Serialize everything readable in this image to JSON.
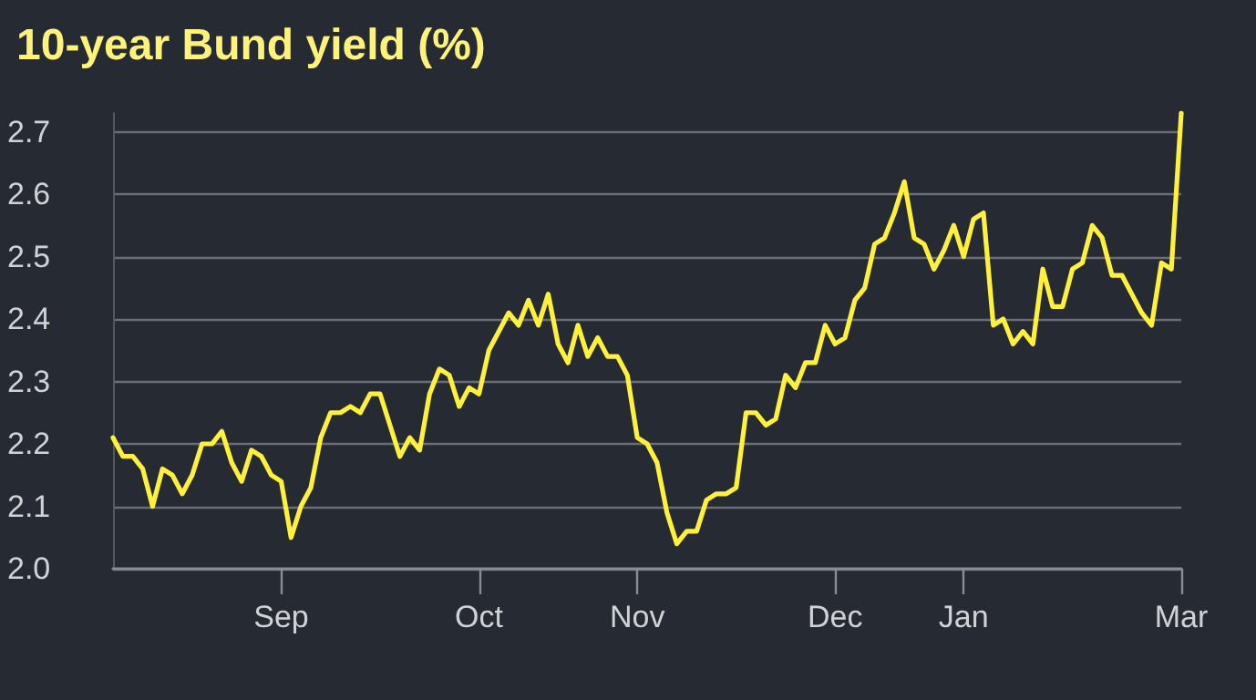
{
  "chart_data": {
    "type": "line",
    "title": "10-year Bund yield (%)",
    "categories": [
      null,
      null,
      null,
      null,
      null,
      null,
      null,
      null,
      null,
      null,
      null,
      null,
      null,
      null,
      null,
      null,
      null,
      "Sep",
      null,
      null,
      null,
      null,
      null,
      null,
      null,
      null,
      null,
      null,
      null,
      null,
      null,
      null,
      null,
      null,
      null,
      null,
      null,
      "Oct",
      null,
      null,
      null,
      null,
      null,
      null,
      null,
      null,
      null,
      null,
      null,
      null,
      null,
      null,
      null,
      "Nov",
      null,
      null,
      null,
      null,
      null,
      null,
      null,
      null,
      null,
      null,
      null,
      null,
      null,
      null,
      null,
      null,
      null,
      null,
      null,
      "Dec",
      null,
      null,
      null,
      null,
      null,
      null,
      null,
      null,
      null,
      null,
      null,
      null,
      "Jan",
      null,
      null,
      null,
      null,
      null,
      null,
      null,
      null,
      null,
      null,
      null,
      null,
      null,
      null,
      null,
      null,
      null,
      null,
      null,
      null,
      null,
      "Mar"
    ],
    "series": [
      {
        "color": "#fff03c",
        "values": [
          2.21,
          2.18,
          2.18,
          2.16,
          2.1,
          2.16,
          2.15,
          2.12,
          2.15,
          2.2,
          2.2,
          2.22,
          2.17,
          2.14,
          2.19,
          2.18,
          2.15,
          2.14,
          2.05,
          2.1,
          2.13,
          2.21,
          2.25,
          2.25,
          2.26,
          2.25,
          2.28,
          2.28,
          2.23,
          2.18,
          2.21,
          2.19,
          2.28,
          2.32,
          2.31,
          2.26,
          2.29,
          2.28,
          2.35,
          2.38,
          2.41,
          2.39,
          2.43,
          2.39,
          2.44,
          2.36,
          2.33,
          2.39,
          2.34,
          2.37,
          2.34,
          2.34,
          2.31,
          2.21,
          2.2,
          2.17,
          2.09,
          2.04,
          2.06,
          2.06,
          2.11,
          2.12,
          2.12,
          2.13,
          2.25,
          2.25,
          2.23,
          2.24,
          2.31,
          2.29,
          2.33,
          2.33,
          2.39,
          2.36,
          2.37,
          2.43,
          2.45,
          2.52,
          2.53,
          2.57,
          2.62,
          2.53,
          2.52,
          2.48,
          2.51,
          2.55,
          2.5,
          2.56,
          2.57,
          2.39,
          2.4,
          2.36,
          2.38,
          2.36,
          2.48,
          2.42,
          2.42,
          2.48,
          2.49,
          2.55,
          2.53,
          2.47,
          2.47,
          2.44,
          2.41,
          2.39,
          2.49,
          2.48,
          2.73
        ]
      }
    ],
    "ylim": [
      2.0,
      2.73
    ],
    "yticks": [
      {
        "value": 2,
        "label": "2.0"
      },
      2.1,
      2.2,
      2.3,
      2.4,
      2.5,
      2.6,
      2.7
    ],
    "grid": "y",
    "marker": "none",
    "line_style": "solid"
  }
}
